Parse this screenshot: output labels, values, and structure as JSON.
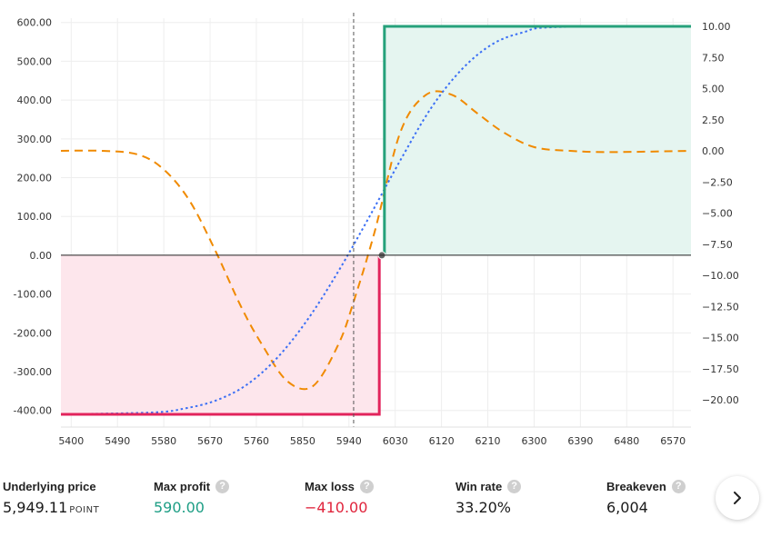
{
  "chart_data": {
    "type": "line",
    "x_ticks": [
      5400,
      5490,
      5580,
      5670,
      5760,
      5850,
      5940,
      6030,
      6120,
      6210,
      6300,
      6390,
      6480,
      6570
    ],
    "x_range": [
      5380,
      6605
    ],
    "y_left_ticks": [
      "600.00",
      "500.00",
      "400.00",
      "300.00",
      "200.00",
      "100.00",
      "0.00",
      "-100.00",
      "-200.00",
      "-300.00",
      "-400.00"
    ],
    "y_left_range": [
      -410,
      590
    ],
    "y_right_ticks": [
      "10.00",
      "7.50",
      "5.00",
      "2.50",
      "0.00",
      "−2.50",
      "−5.00",
      "−7.50",
      "−10.00",
      "−12.50",
      "−15.00",
      "−17.50",
      "−20.00"
    ],
    "y_right_range": [
      -20,
      10
    ],
    "current_price_x": 5949.11,
    "breakeven_x": 6004,
    "series": [
      {
        "key": "payoff",
        "color_profit": "#26a17b",
        "color_loss": "#e2245c",
        "x": [
          5380,
          5999,
          5999,
          6009,
          6009,
          6605
        ],
        "y": [
          -410,
          -410,
          0,
          0,
          590,
          590
        ]
      },
      {
        "key": "blue_dotted",
        "color": "#3b6ff5",
        "x": [
          5380,
          5560,
          5620,
          5680,
          5740,
          5800,
          5860,
          5920,
          5980,
          6040,
          6100,
          6160,
          6220,
          6280,
          6340,
          6605
        ],
        "y": [
          -410,
          -405,
          -395,
          -375,
          -335,
          -265,
          -165,
          -40,
          100,
          245,
          380,
          480,
          545,
          575,
          588,
          590
        ]
      },
      {
        "key": "orange_dashed",
        "axis": "right",
        "color": "#f08a00",
        "x": [
          5380,
          5460,
          5530,
          5580,
          5630,
          5680,
          5730,
          5770,
          5820,
          5870,
          5920,
          5950,
          5990,
          6040,
          6090,
          6140,
          6190,
          6240,
          6300,
          6370,
          6450,
          6605
        ],
        "y": [
          0,
          0,
          -0.3,
          -1.5,
          -4.0,
          -8.0,
          -12.5,
          -15.5,
          -18.5,
          -18.9,
          -15.5,
          -12.0,
          -6.5,
          1.5,
          4.5,
          4.5,
          3.0,
          1.5,
          0.3,
          0,
          -0.1,
          0
        ]
      }
    ]
  },
  "stats": [
    {
      "label": "Underlying price",
      "value": "5,949.11",
      "unit": "POINT",
      "value_color": "#1a1a1a"
    },
    {
      "label": "Max profit",
      "value": "590.00",
      "unit": "",
      "value_color": "#1e9e85",
      "help": "?"
    },
    {
      "label": "Max loss",
      "value": "−410.00",
      "unit": "",
      "value_color": "#e0243c",
      "help": "?"
    },
    {
      "label": "Win rate",
      "value": "33.20%",
      "unit": "",
      "value_color": "#1a1a1a",
      "help": "?"
    },
    {
      "label": "Breakeven",
      "value": "6,004",
      "unit": "",
      "value_color": "#1a1a1a",
      "help": "?"
    }
  ],
  "next_button": {
    "icon": "chevron-right-icon"
  }
}
